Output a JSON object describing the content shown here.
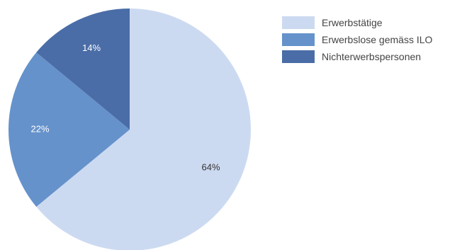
{
  "chart_data": {
    "type": "pie",
    "title": "",
    "start_angle_deg": 0,
    "direction": "clockwise",
    "legend_position": "top-right",
    "slices": [
      {
        "name": "Erwerbstätige",
        "value": 64,
        "label": "64%",
        "color": "#ccdaf1",
        "label_color": "#333333"
      },
      {
        "name": "Erwerbslose gemäss ILO",
        "value": 22,
        "label": "22%",
        "color": "#6592cb",
        "label_color": "#ffffff"
      },
      {
        "name": "Nichterwerbspersonen",
        "value": 14,
        "label": "14%",
        "color": "#4a6da7",
        "label_color": "#ffffff"
      }
    ]
  }
}
